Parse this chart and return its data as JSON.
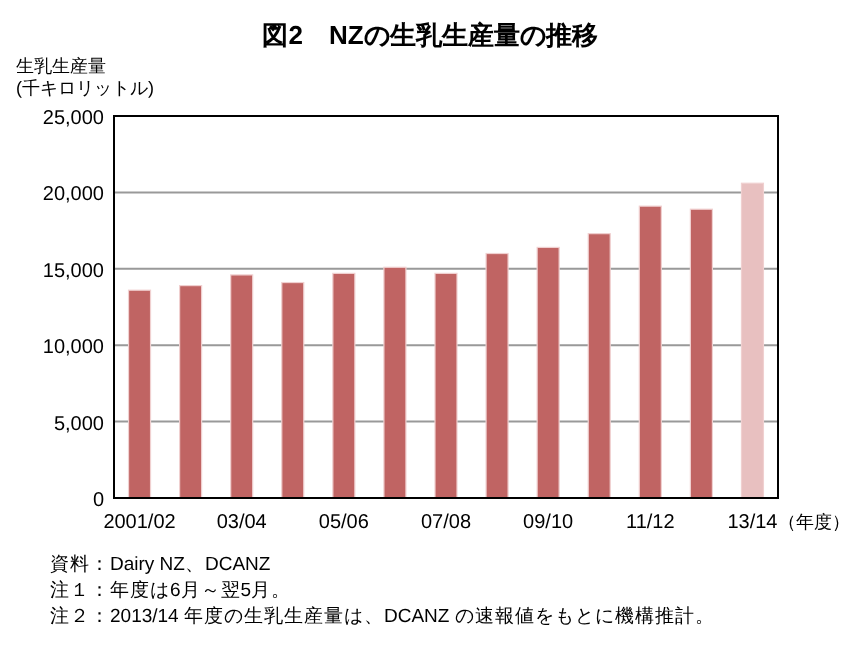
{
  "chart_data": {
    "type": "bar",
    "title": "図2　NZの生乳生産量の推移",
    "ylabel": "生乳生産量\n(千キロリットル)",
    "xlabel": "（年度）",
    "categories": [
      "2001/02",
      null,
      "03/04",
      null,
      "05/06",
      null,
      "07/08",
      null,
      "09/10",
      null,
      "11/12",
      null,
      "13/14"
    ],
    "values": [
      13600,
      13900,
      14600,
      14100,
      14700,
      15100,
      14700,
      16000,
      16400,
      17300,
      19100,
      18900,
      20600
    ],
    "colors": [
      "#c06463",
      "#c06463",
      "#c06463",
      "#c06463",
      "#c06463",
      "#c06463",
      "#c06463",
      "#c06463",
      "#c06463",
      "#c06463",
      "#c06463",
      "#c06463",
      "#e8c0c0"
    ],
    "ylim": [
      0,
      25000
    ],
    "yticks": [
      {
        "value": 0,
        "label": "0"
      },
      {
        "value": 5000,
        "label": "5,000"
      },
      {
        "value": 10000,
        "label": "10,000"
      },
      {
        "value": 15000,
        "label": "15,000"
      },
      {
        "value": 20000,
        "label": "20,000"
      },
      {
        "value": 25000,
        "label": "25,000"
      }
    ],
    "grid": "y",
    "annotations": [
      "資料：Dairy NZ、DCANZ",
      "注１：年度は6月～翌5月。",
      "注２：2013/14 年度の生乳生産量は、DCANZ の速報値をもとに機構推計。"
    ]
  }
}
